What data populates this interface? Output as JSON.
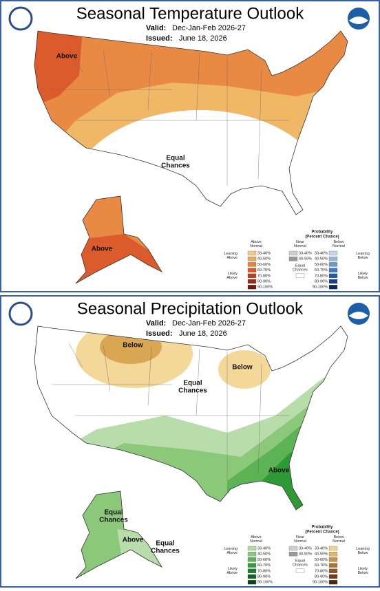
{
  "panels": [
    {
      "title": "Seasonal Temperature Outlook",
      "valid_label": "Valid:",
      "valid": "Dec-Jan-Feb 2026-27",
      "issued_label": "Issued:",
      "issued": "June 18, 2026",
      "labels": [
        "Above",
        "Equal Chances",
        "Above"
      ],
      "legend": {
        "title": "Probability",
        "subtitle": "(Percent Chance)",
        "columns": [
          "Above Normal",
          "Near Normal",
          "Below Normal"
        ],
        "above": [
          "33-40%",
          "40-50%",
          "50-60%",
          "60-70%",
          "70-80%",
          "80-90%",
          "90-100%"
        ],
        "near": [
          "33-40%",
          "40-50%"
        ],
        "below": [
          "33-40%",
          "40-50%",
          "50-60%",
          "60-70%",
          "70-80%",
          "80-90%",
          "90-100%"
        ],
        "leaning_above": "Leaning Above",
        "likely_above": "Likely Above",
        "equal": "Equal Chances",
        "leaning_below": "Leaning Below",
        "likely_below": "Likely Below"
      }
    },
    {
      "title": "Seasonal Precipitation Outlook",
      "valid_label": "Valid:",
      "valid": "Dec-Jan-Feb 2026-27",
      "issued_label": "Issued:",
      "issued": "June 18, 2026",
      "labels": [
        "Below",
        "Below",
        "Equal Chances",
        "Above",
        "Equal Chances",
        "Above",
        "Equal Chances"
      ],
      "legend": {
        "title": "Probability",
        "subtitle": "(Percent Chance)",
        "columns": [
          "Above Normal",
          "Near Normal",
          "Below Normal"
        ],
        "above": [
          "33-40%",
          "40-50%",
          "50-60%",
          "60-70%",
          "70-80%",
          "80-90%",
          "90-100%"
        ],
        "near": [
          "33-40%",
          "40-50%"
        ],
        "below": [
          "33-40%",
          "40-50%",
          "50-60%",
          "60-70%",
          "70-80%",
          "80-90%",
          "90-100%"
        ],
        "leaning_above": "Leaning Above",
        "likely_above": "Likely Above",
        "equal": "Equal Chances",
        "leaning_below": "Leaning Below",
        "likely_below": "Likely Below"
      }
    }
  ]
}
